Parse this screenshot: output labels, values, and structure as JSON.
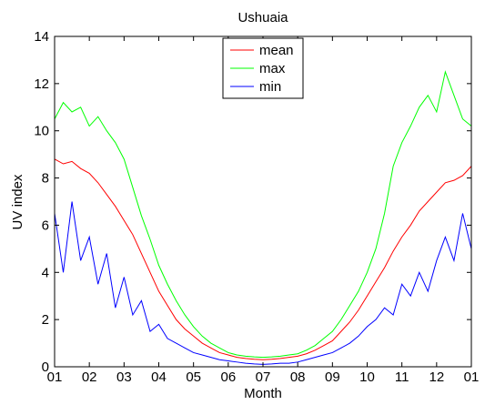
{
  "chart_data": {
    "type": "line",
    "title": "Ushuaia",
    "xlabel": "Month",
    "ylabel": "UV index",
    "xlim": [
      0,
      12
    ],
    "ylim": [
      0,
      14
    ],
    "x_ticks": [
      0,
      1,
      2,
      3,
      4,
      5,
      6,
      7,
      8,
      9,
      10,
      11,
      12
    ],
    "x_tick_labels": [
      "01",
      "02",
      "03",
      "04",
      "05",
      "06",
      "07",
      "08",
      "09",
      "10",
      "11",
      "12",
      "01"
    ],
    "y_ticks": [
      0,
      2,
      4,
      6,
      8,
      10,
      12,
      14
    ],
    "y_tick_labels": [
      "0",
      "2",
      "4",
      "6",
      "8",
      "10",
      "12",
      "14"
    ],
    "grid": false,
    "legend_position": "top-center",
    "x": [
      0,
      0.25,
      0.5,
      0.75,
      1,
      1.25,
      1.5,
      1.75,
      2,
      2.25,
      2.5,
      2.75,
      3,
      3.25,
      3.5,
      3.75,
      4,
      4.25,
      4.5,
      4.75,
      5,
      5.25,
      5.5,
      5.75,
      6,
      6.25,
      6.5,
      6.75,
      7,
      7.25,
      7.5,
      7.75,
      8,
      8.25,
      8.5,
      8.75,
      9,
      9.25,
      9.5,
      9.75,
      10,
      10.25,
      10.5,
      10.75,
      11,
      11.25,
      11.5,
      11.75,
      12
    ],
    "series": [
      {
        "name": "mean",
        "color": "#ff0000",
        "values": [
          8.8,
          8.6,
          8.7,
          8.4,
          8.2,
          7.8,
          7.3,
          6.8,
          6.2,
          5.6,
          4.8,
          4.0,
          3.2,
          2.6,
          2.0,
          1.6,
          1.3,
          1.0,
          0.8,
          0.6,
          0.5,
          0.4,
          0.35,
          0.32,
          0.3,
          0.32,
          0.35,
          0.4,
          0.45,
          0.55,
          0.7,
          0.9,
          1.1,
          1.5,
          1.9,
          2.4,
          3.0,
          3.6,
          4.2,
          4.9,
          5.5,
          6.0,
          6.6,
          7.0,
          7.4,
          7.8,
          7.9,
          8.1,
          8.5
        ]
      },
      {
        "name": "max",
        "color": "#00ff00",
        "values": [
          10.5,
          11.2,
          10.8,
          11.0,
          10.2,
          10.6,
          10.0,
          9.5,
          8.8,
          7.6,
          6.4,
          5.4,
          4.3,
          3.5,
          2.8,
          2.2,
          1.7,
          1.3,
          1.0,
          0.8,
          0.6,
          0.5,
          0.45,
          0.42,
          0.4,
          0.42,
          0.45,
          0.5,
          0.55,
          0.7,
          0.9,
          1.2,
          1.5,
          2.0,
          2.6,
          3.2,
          4.0,
          5.0,
          6.5,
          8.5,
          9.5,
          10.2,
          11.0,
          11.5,
          10.8,
          12.5,
          11.5,
          10.5,
          10.2
        ]
      },
      {
        "name": "min",
        "color": "#0000ff",
        "values": [
          6.5,
          4.0,
          7.0,
          4.5,
          5.5,
          3.5,
          4.8,
          2.5,
          3.8,
          2.2,
          2.8,
          1.5,
          1.8,
          1.2,
          1.0,
          0.8,
          0.6,
          0.5,
          0.4,
          0.3,
          0.25,
          0.2,
          0.15,
          0.12,
          0.1,
          0.12,
          0.15,
          0.15,
          0.2,
          0.3,
          0.4,
          0.5,
          0.6,
          0.8,
          1.0,
          1.3,
          1.7,
          2.0,
          2.5,
          2.2,
          3.5,
          3.0,
          4.0,
          3.2,
          4.5,
          5.5,
          4.5,
          6.5,
          5.0
        ]
      }
    ]
  }
}
